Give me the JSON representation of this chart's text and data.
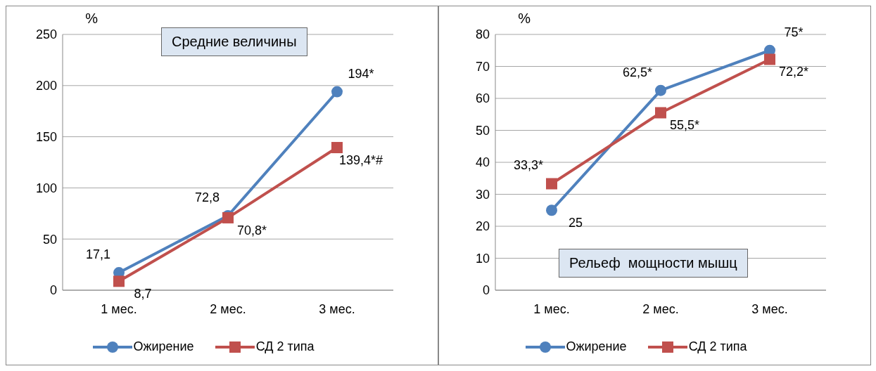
{
  "chart_data": [
    {
      "type": "line",
      "title": "Средние величины",
      "ylabel": "%",
      "categories": [
        "1 мес.",
        "2 мес.",
        "3 мес."
      ],
      "ylim": [
        0,
        250
      ],
      "yticks": [
        0,
        50,
        100,
        150,
        200,
        250
      ],
      "grid": "y",
      "legend": "bottom",
      "series": [
        {
          "name": "Ожирение",
          "color": "#4f81bd",
          "marker": "circle",
          "values": [
            17.1,
            72.8,
            194
          ],
          "value_labels": [
            "17,1",
            "72,8",
            "194*"
          ]
        },
        {
          "name": "СД 2 типа",
          "color": "#c0504d",
          "marker": "square",
          "values": [
            8.7,
            70.8,
            139.4
          ],
          "value_labels": [
            "8,7",
            "70,8*",
            "139,4*#"
          ]
        }
      ]
    },
    {
      "type": "line",
      "title": "Рельеф  мощности мышц",
      "ylabel": "%",
      "categories": [
        "1 мес.",
        "2 мес.",
        "3 мес."
      ],
      "ylim": [
        0,
        80
      ],
      "yticks": [
        0,
        10,
        20,
        30,
        40,
        50,
        60,
        70,
        80
      ],
      "grid": "y",
      "legend": "bottom",
      "series": [
        {
          "name": "Ожирение",
          "color": "#4f81bd",
          "marker": "circle",
          "values": [
            25,
            62.5,
            75
          ],
          "value_labels": [
            "25",
            "62,5*",
            "75*"
          ]
        },
        {
          "name": "СД 2 типа",
          "color": "#c0504d",
          "marker": "square",
          "values": [
            33.3,
            55.5,
            72.2
          ],
          "value_labels": [
            "33,3*",
            "55,5*",
            "72,2*"
          ]
        }
      ]
    }
  ]
}
